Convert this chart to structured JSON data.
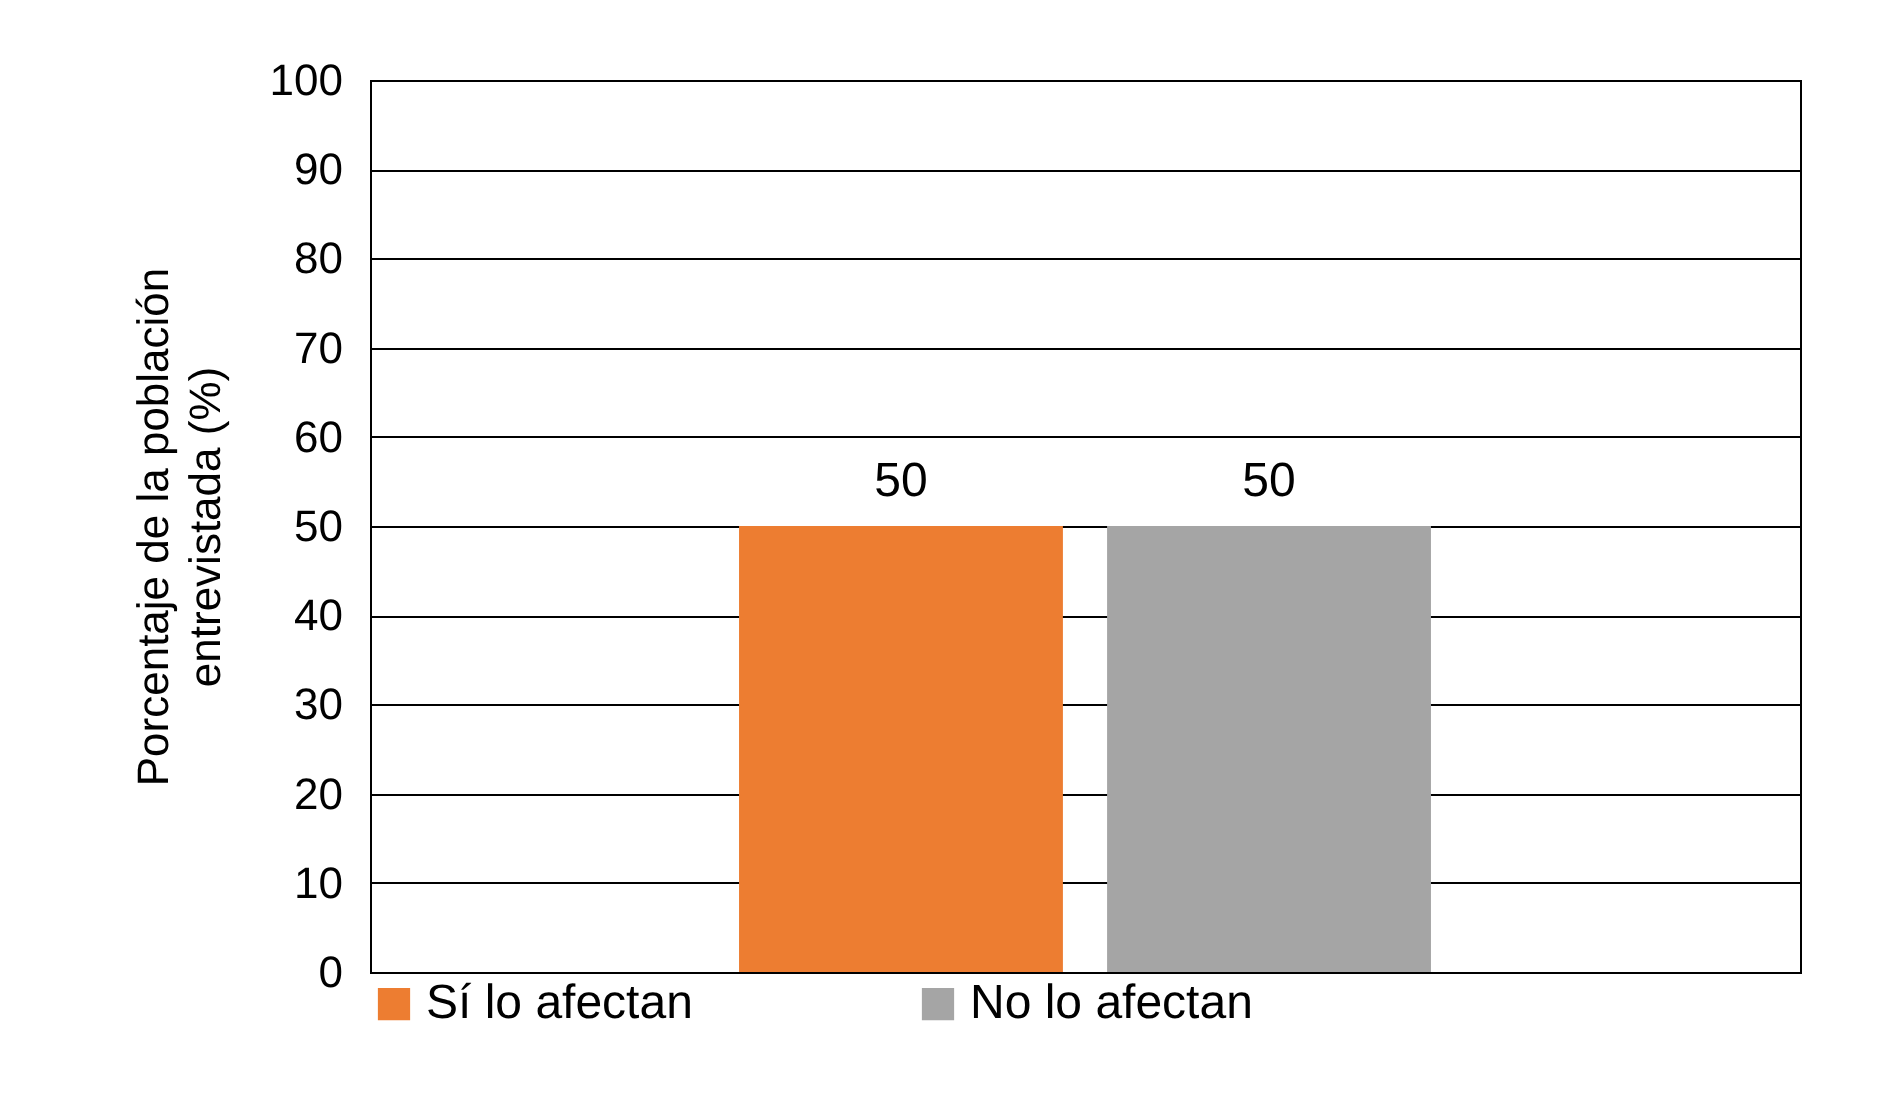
{
  "chart_data": {
    "type": "bar",
    "ylabel": "Porcentaje de la población entrevistada (%)",
    "categories": [
      null
    ],
    "series": [
      {
        "name": "Sí lo afectan",
        "color": "#ed7d31",
        "values": [
          50
        ]
      },
      {
        "name": "No lo afectan",
        "color": "#a5a5a5",
        "values": [
          50
        ]
      }
    ],
    "ylim": [
      0,
      100
    ],
    "yticks": [
      0,
      10,
      20,
      30,
      40,
      50,
      60,
      70,
      80,
      90,
      100
    ],
    "grid": "y",
    "legend": "bottom",
    "data_labels": true
  }
}
